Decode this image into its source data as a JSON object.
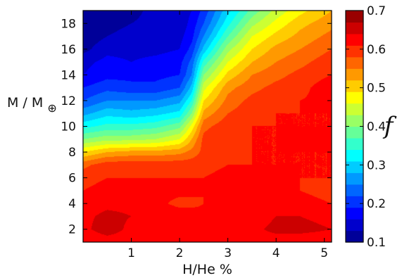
{
  "chart_data": {
    "type": "heatmap",
    "subtype": "filled-contour",
    "title": "",
    "xlabel": "H/He %",
    "ylabel_main": "M / M",
    "ylabel_subscript": "⊕",
    "x_ticks": [
      1,
      2,
      3,
      4,
      5
    ],
    "x_tick_labels": [
      "1",
      "2",
      "3",
      "4",
      "5"
    ],
    "y_ticks": [
      2,
      4,
      6,
      8,
      10,
      12,
      14,
      16,
      18
    ],
    "y_tick_labels": [
      "2",
      "4",
      "6",
      "8",
      "10",
      "12",
      "14",
      "16",
      "18"
    ],
    "xlim": [
      0.0,
      5.15
    ],
    "ylim": [
      1.0,
      19.0
    ],
    "x": [
      0.0,
      0.5,
      1.0,
      1.5,
      2.0,
      2.25,
      2.5,
      3.0,
      3.5,
      4.0,
      4.5,
      5.15
    ],
    "y": [
      1,
      2,
      3,
      4,
      5,
      6,
      7,
      8,
      9,
      10,
      11,
      12,
      13,
      14,
      15,
      16,
      17,
      18,
      19
    ],
    "z": [
      [
        0.61,
        0.62,
        0.62,
        0.62,
        0.62,
        0.62,
        0.62,
        0.63,
        0.63,
        0.62,
        0.62,
        0.62
      ],
      [
        0.63,
        0.66,
        0.63,
        0.62,
        0.62,
        0.62,
        0.62,
        0.63,
        0.63,
        0.65,
        0.65,
        0.64
      ],
      [
        0.63,
        0.65,
        0.64,
        0.64,
        0.63,
        0.63,
        0.62,
        0.62,
        0.62,
        0.64,
        0.64,
        0.63
      ],
      [
        0.62,
        0.63,
        0.63,
        0.62,
        0.6,
        0.6,
        0.61,
        0.62,
        0.63,
        0.63,
        0.62,
        0.61
      ],
      [
        0.61,
        0.62,
        0.62,
        0.62,
        0.62,
        0.62,
        0.61,
        0.63,
        0.63,
        0.62,
        0.61,
        0.6
      ],
      [
        0.6,
        0.61,
        0.61,
        0.61,
        0.61,
        0.61,
        0.61,
        0.62,
        0.63,
        0.62,
        0.61,
        0.61
      ],
      [
        0.57,
        0.6,
        0.6,
        0.6,
        0.6,
        0.6,
        0.6,
        0.61,
        0.61,
        0.61,
        0.61,
        0.61
      ],
      [
        0.49,
        0.52,
        0.53,
        0.53,
        0.54,
        0.56,
        0.59,
        0.6,
        0.61,
        0.61,
        0.61,
        0.61
      ],
      [
        0.4,
        0.42,
        0.42,
        0.43,
        0.46,
        0.52,
        0.59,
        0.61,
        0.61,
        0.61,
        0.63,
        0.61
      ],
      [
        0.33,
        0.35,
        0.35,
        0.36,
        0.39,
        0.47,
        0.57,
        0.6,
        0.61,
        0.61,
        0.61,
        0.61
      ],
      [
        0.27,
        0.3,
        0.29,
        0.3,
        0.32,
        0.4,
        0.53,
        0.58,
        0.6,
        0.61,
        0.61,
        0.61
      ],
      [
        0.22,
        0.25,
        0.25,
        0.25,
        0.27,
        0.34,
        0.49,
        0.56,
        0.59,
        0.6,
        0.61,
        0.62
      ],
      [
        0.19,
        0.21,
        0.2,
        0.2,
        0.22,
        0.29,
        0.45,
        0.54,
        0.57,
        0.59,
        0.6,
        0.63
      ],
      [
        0.16,
        0.18,
        0.18,
        0.18,
        0.19,
        0.25,
        0.4,
        0.5,
        0.55,
        0.57,
        0.59,
        0.61
      ],
      [
        0.15,
        0.17,
        0.16,
        0.17,
        0.18,
        0.23,
        0.35,
        0.46,
        0.52,
        0.55,
        0.57,
        0.6
      ],
      [
        0.12,
        0.15,
        0.15,
        0.15,
        0.16,
        0.2,
        0.29,
        0.42,
        0.49,
        0.53,
        0.55,
        0.58
      ],
      [
        0.11,
        0.13,
        0.14,
        0.14,
        0.15,
        0.18,
        0.25,
        0.37,
        0.46,
        0.5,
        0.53,
        0.56
      ],
      [
        0.11,
        0.12,
        0.13,
        0.14,
        0.14,
        0.17,
        0.22,
        0.33,
        0.42,
        0.47,
        0.51,
        0.54
      ],
      [
        0.1,
        0.11,
        0.12,
        0.14,
        0.14,
        0.16,
        0.2,
        0.3,
        0.38,
        0.44,
        0.48,
        0.52
      ]
    ],
    "colorbar": {
      "label": "f",
      "min": 0.1,
      "max": 0.7,
      "ticks": [
        0.1,
        0.2,
        0.3,
        0.4,
        0.5,
        0.6,
        0.7
      ],
      "tick_labels": [
        "0.1",
        "0.2",
        "0.3",
        "0.4",
        "0.5",
        "0.6",
        "0.7"
      ],
      "levels": 20,
      "colormap": "jet"
    },
    "grid": false,
    "legend": "none"
  }
}
